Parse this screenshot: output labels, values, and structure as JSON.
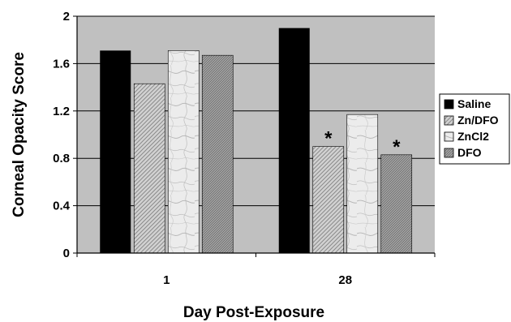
{
  "chart_data": {
    "type": "bar",
    "title": "",
    "xlabel": "Day Post-Exposure",
    "ylabel": "Corneal Opacity Score",
    "categories": [
      "1",
      "28"
    ],
    "ylim": [
      0,
      2
    ],
    "yticks": [
      "0",
      "0.4",
      "0.8",
      "1.2",
      "1.6",
      "2"
    ],
    "grid": true,
    "legend_position": "right",
    "series": [
      {
        "name": "Saline",
        "values": [
          1.71,
          1.9
        ],
        "pattern": "solid",
        "color": "#000000"
      },
      {
        "name": "Zn/DFO",
        "values": [
          1.43,
          0.9
        ],
        "pattern": "diagonal-hatch",
        "color": "#bdbdbd"
      },
      {
        "name": "ZnCl2",
        "values": [
          1.71,
          1.17
        ],
        "pattern": "marble",
        "color": "#e9e9e9"
      },
      {
        "name": "DFO",
        "values": [
          1.67,
          0.83
        ],
        "pattern": "dense-hatch",
        "color": "#9a9a9a"
      }
    ],
    "annotations": [
      {
        "text": "*",
        "category": "28",
        "series": "Zn/DFO"
      },
      {
        "text": "*",
        "category": "28",
        "series": "DFO"
      }
    ],
    "plot_background": "#c0c0c0"
  }
}
